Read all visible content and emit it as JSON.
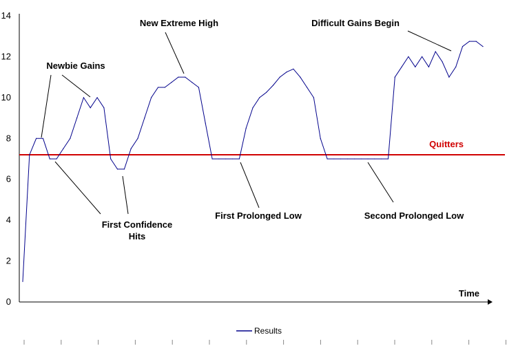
{
  "chart_data": {
    "type": "line",
    "xlabel": "Time",
    "ylabel": "",
    "ylim": [
      0,
      14
    ],
    "y_ticks": [
      "0",
      "2",
      "4",
      "6",
      "8",
      "10",
      "12",
      "14"
    ],
    "grid": false,
    "legend_placement": "bottom-center",
    "series": [
      {
        "name": "Results",
        "color": "#00008b",
        "values": [
          1,
          7.2,
          8,
          8,
          7,
          7,
          7.5,
          8,
          9,
          10,
          9.5,
          10,
          9.5,
          7,
          6.5,
          6.5,
          7.5,
          8,
          9,
          10,
          10.5,
          10.5,
          10.75,
          11,
          11,
          10.75,
          10.5,
          8.75,
          7,
          7,
          7,
          7,
          7,
          8.5,
          9.5,
          10,
          10.25,
          10.6,
          11,
          11.25,
          11.4,
          11,
          10.5,
          10,
          8,
          7,
          7,
          7,
          7,
          7,
          7,
          7,
          7,
          7,
          7,
          11,
          11.5,
          12,
          11.5,
          12,
          11.5,
          12.25,
          11.75,
          11,
          11.5,
          12.5,
          12.75,
          12.75,
          12.5
        ]
      }
    ],
    "reference_line": {
      "label": "Quitters",
      "value": 7.2,
      "color": "#d00000"
    },
    "annotations": [
      {
        "label_lines": [
          "Newbie Gains"
        ]
      },
      {
        "label_lines": [
          "First Confidence",
          "Hits"
        ]
      },
      {
        "label_lines": [
          "New Extreme High"
        ]
      },
      {
        "label_lines": [
          "First Prolonged Low"
        ]
      },
      {
        "label_lines": [
          "Second Prolonged Low"
        ]
      },
      {
        "label_lines": [
          "Difficult Gains Begin"
        ]
      }
    ]
  }
}
